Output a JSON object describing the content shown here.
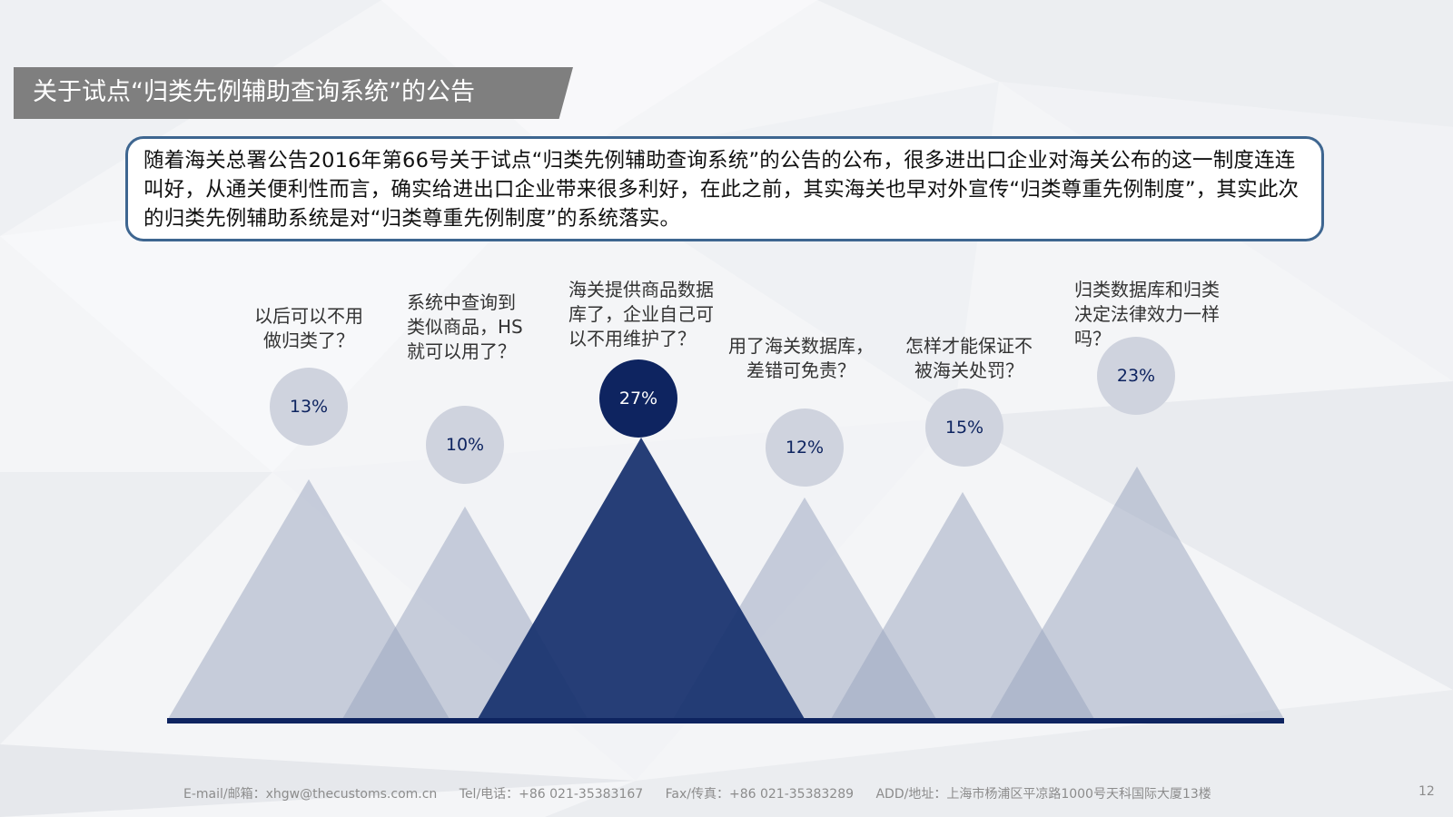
{
  "title": "关于试点“归类先例辅助查询系统”的公告",
  "intro": "随着海关总署公告2016年第66号关于试点“归类先例辅助查询系统”的公告的公布，很多进出口企业对海关公布的这一制度连连叫好，从通关便利性而言，确实给进出口企业带来很多利好，在此之前，其实海关也早对外宣传“归类尊重先例制度”，其实此次的归类先例辅助系统是对“归类尊重先例制度”的系统落实。",
  "questions": [
    {
      "label": "以后可以不用\n做归类了？",
      "percent": "13%"
    },
    {
      "label": "系统中查询到\n类似商品，HS\n就可以用了？",
      "percent": "10%"
    },
    {
      "label": "海关提供商品数据\n库了，企业自己可\n以不用维护了？",
      "percent": "27%"
    },
    {
      "label": "用了海关数据库，\n差错可免责？",
      "percent": "12%"
    },
    {
      "label": "怎样才能保证不\n被海关处罚？",
      "percent": "15%"
    },
    {
      "label": "归类数据库和归类\n决定法律效力一样\n吗？",
      "percent": "23%"
    }
  ],
  "footer": {
    "email": "E-mail/邮箱：xhgw@thecustoms.com.cn",
    "tel": "Tel/电话：+86 021-35383167",
    "fax": "Fax/传真：+86 021-35383289",
    "address": "ADD/地址：上海市杨浦区平凉路1000号天科国际大厦13楼"
  },
  "page_number": "12",
  "colors": {
    "accent_dark": "#0e2460",
    "triangle_dark": "#1a3470",
    "triangle_light": "#b4bccf",
    "circle_light": "#cfd3de",
    "title_bg": "#7f7f7f",
    "box_border": "#3e6690"
  }
}
